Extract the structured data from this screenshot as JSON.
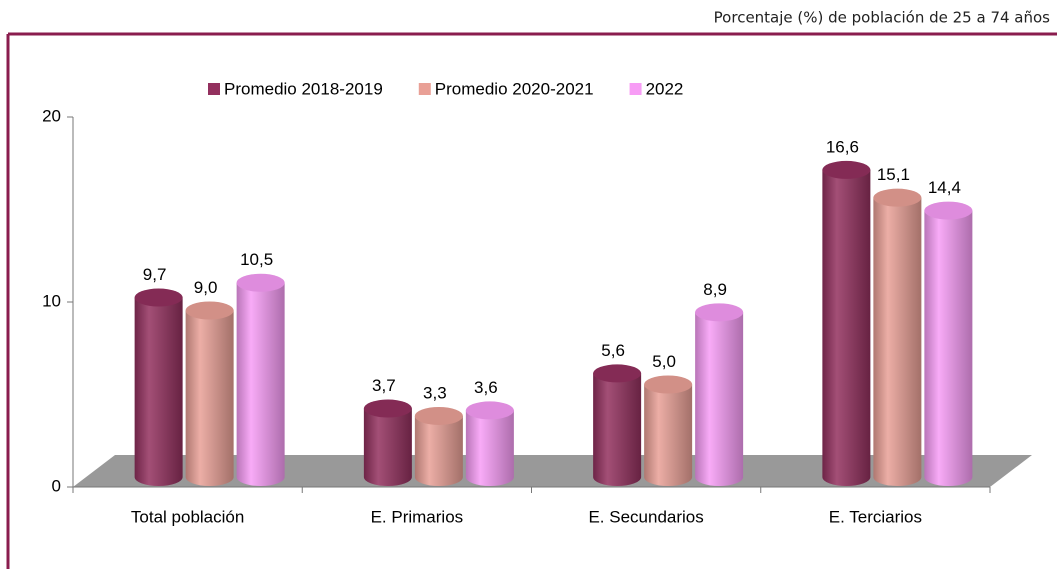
{
  "chart_data": {
    "type": "bar3d",
    "subtitle": "Porcentaje (%) de población de 25 a 74 años",
    "categories": [
      "Total población",
      "E. Primarios",
      "E. Secundarios",
      "E. Terciarios"
    ],
    "series": [
      {
        "name": "Promedio 2018-2019",
        "color": "#93305e",
        "values": [
          9.7,
          3.7,
          5.6,
          16.6
        ],
        "value_labels": [
          "9,7",
          "3,7",
          "5,6",
          "16,6"
        ]
      },
      {
        "name": "Promedio 2020-2021",
        "color": "#e9a096",
        "values": [
          9.0,
          3.3,
          5.0,
          15.1
        ],
        "value_labels": [
          "9,0",
          "3,3",
          "5,0",
          "15,1"
        ]
      },
      {
        "name": "2022",
        "color": "#f79cf5",
        "values": [
          10.5,
          3.6,
          8.9,
          14.4
        ],
        "value_labels": [
          "10,5",
          "3,6",
          "8,9",
          "14,4"
        ]
      }
    ],
    "ylim": [
      0,
      20
    ],
    "yticks": [
      0,
      10,
      20
    ],
    "legend": "top"
  }
}
